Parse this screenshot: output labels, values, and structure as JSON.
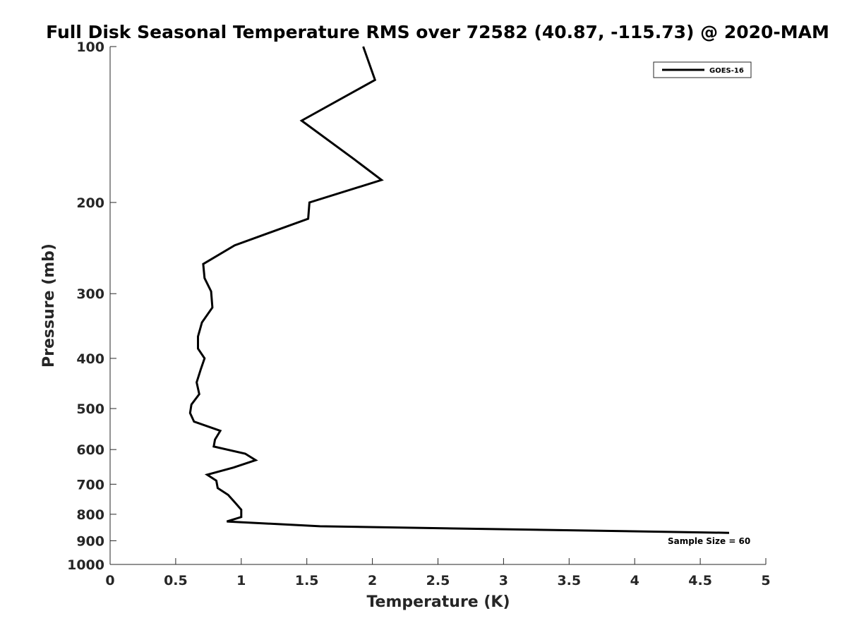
{
  "chart_data": {
    "type": "line",
    "title": "Full Disk Seasonal Temperature RMS over 72582 (40.87, -115.73) @ 2020-MAM",
    "xlabel": "Temperature (K)",
    "ylabel": "Pressure (mb)",
    "xlim": [
      0,
      5
    ],
    "ylim": [
      1000,
      100
    ],
    "yscale": "log",
    "xticks": [
      "0",
      "0.5",
      "1",
      "1.5",
      "2",
      "2.5",
      "3",
      "3.5",
      "4",
      "4.5",
      "5"
    ],
    "yticks": [
      "100",
      "200",
      "300",
      "400",
      "500",
      "600",
      "700",
      "800",
      "900",
      "1000"
    ],
    "grid": false,
    "legend_placement": "top-right",
    "annotation": "Sample Size = 60",
    "series": [
      {
        "name": "GOES-16",
        "color": "#000000",
        "x": [
          1.93,
          2.02,
          1.46,
          1.86,
          2.07,
          1.52,
          1.51,
          0.95,
          0.71,
          0.72,
          0.77,
          0.78,
          0.7,
          0.67,
          0.67,
          0.72,
          0.69,
          0.66,
          0.68,
          0.62,
          0.61,
          0.64,
          0.84,
          0.8,
          0.79,
          1.03,
          1.11,
          0.94,
          0.74,
          0.81,
          0.82,
          0.9,
          0.95,
          1.0,
          1.0,
          0.89,
          1.6,
          4.72
        ],
        "y": [
          100,
          116,
          139,
          165,
          181,
          200,
          215,
          242,
          263,
          280,
          297,
          319,
          341,
          363,
          383,
          400,
          421,
          445,
          469,
          491,
          510,
          530,
          552,
          574,
          592,
          611,
          629,
          650,
          671,
          689,
          712,
          734,
          758,
          784,
          810,
          826,
          844,
          869
        ]
      }
    ]
  }
}
